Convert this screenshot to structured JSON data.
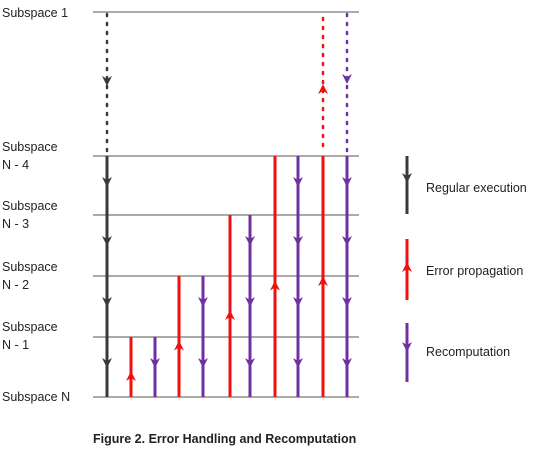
{
  "subspace_labels": {
    "s1": "Subspace 1",
    "n4": [
      "Subspace",
      "N - 4"
    ],
    "n3": [
      "Subspace",
      "N - 3"
    ],
    "n2": [
      "Subspace",
      "N - 2"
    ],
    "n1": [
      "Subspace",
      "N - 1"
    ],
    "n": "Subspace N"
  },
  "legend": {
    "regular": "Regular execution",
    "error": "Error propagation",
    "recompute": "Recomputation"
  },
  "caption": "Figure 2. Error Handling and Recomputation",
  "colors": {
    "regular": "#3a3a3a",
    "error": "#ee1111",
    "recompute": "#7030a0",
    "gridline": "#555555"
  }
}
